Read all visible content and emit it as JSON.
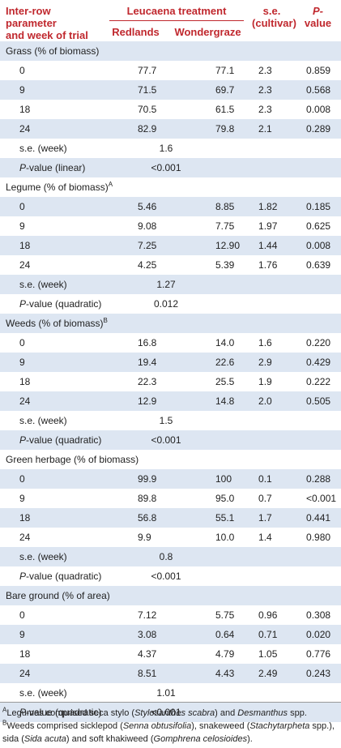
{
  "header": {
    "col0": [
      "Inter-row parameter",
      "and week of trial"
    ],
    "leucaena": "Leucaena treatment",
    "redlands": "Redlands",
    "wondergraze": "Wondergraze",
    "se": [
      "s.e.",
      "(cultivar)"
    ],
    "p": [
      "P-",
      "value"
    ]
  },
  "sections": [
    {
      "title": "Grass (% of biomass)",
      "sup": "",
      "rows": [
        [
          "0",
          "77.7",
          "77.1",
          "2.3",
          "0.859"
        ],
        [
          "9",
          "71.5",
          "69.7",
          "2.3",
          "0.568"
        ],
        [
          "18",
          "70.5",
          "61.5",
          "2.3",
          "0.008"
        ],
        [
          "24",
          "82.9",
          "79.8",
          "2.1",
          "0.289"
        ]
      ],
      "se_week": "1.6",
      "p_label": "P-value (linear)",
      "p_val": "<0.001"
    },
    {
      "title": "Legume (% of biomass)",
      "sup": "A",
      "rows": [
        [
          "0",
          "5.46",
          "8.85",
          "1.82",
          "0.185"
        ],
        [
          "9",
          "9.08",
          "7.75",
          "1.97",
          "0.625"
        ],
        [
          "18",
          "7.25",
          "12.90",
          "1.44",
          "0.008"
        ],
        [
          "24",
          "4.25",
          "5.39",
          "1.76",
          "0.639"
        ]
      ],
      "se_week": "1.27",
      "p_label": "P-value (quadratic)",
      "p_val": "0.012"
    },
    {
      "title": "Weeds (% of biomass)",
      "sup": "B",
      "rows": [
        [
          "0",
          "16.8",
          "14.0",
          "1.6",
          "0.220"
        ],
        [
          "9",
          "19.4",
          "22.6",
          "2.9",
          "0.429"
        ],
        [
          "18",
          "22.3",
          "25.5",
          "1.9",
          "0.222"
        ],
        [
          "24",
          "12.9",
          "14.8",
          "2.0",
          "0.505"
        ]
      ],
      "se_week": "1.5",
      "p_label": "P-value (quadratic)",
      "p_val": "<0.001"
    },
    {
      "title": "Green herbage (% of biomass)",
      "sup": "",
      "rows": [
        [
          "0",
          "99.9",
          "100",
          "0.1",
          "0.288"
        ],
        [
          "9",
          "89.8",
          "95.0",
          "0.7",
          "<0.001"
        ],
        [
          "18",
          "56.8",
          "55.1",
          "1.7",
          "0.441"
        ],
        [
          "24",
          "9.9",
          "10.0",
          "1.4",
          "0.980"
        ]
      ],
      "se_week": "0.8",
      "p_label": "P-value (quadratic)",
      "p_val": "<0.001"
    },
    {
      "title": "Bare ground (% of area)",
      "sup": "",
      "rows": [
        [
          "0",
          "7.12",
          "5.75",
          "0.96",
          "0.308"
        ],
        [
          "9",
          "3.08",
          "0.64",
          "0.71",
          "0.020"
        ],
        [
          "18",
          "4.37",
          "4.79",
          "1.05",
          "0.776"
        ],
        [
          "24",
          "8.51",
          "4.43",
          "2.49",
          "0.243"
        ]
      ],
      "se_week": "1.01",
      "p_label": "P-value (quadratic)",
      "p_val": "<0.001"
    }
  ],
  "se_week_label": "s.e. (week)",
  "footnotes": {
    "a_marker": "A",
    "a_text": "Legumes comprised seca stylo (Stylosanthes scabra) and Desmanthus spp.",
    "b_marker": "B",
    "b_text": "Weeds comprised sicklepod (Senna obtusifolia), snakeweed (Stachytarpheta spp.), sida (Sida acuta) and soft khakiweed (Gomphrena celosioides)."
  }
}
